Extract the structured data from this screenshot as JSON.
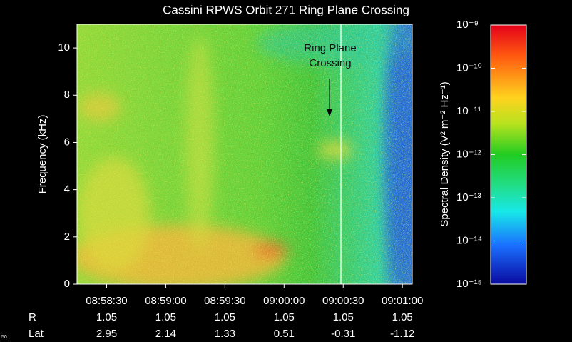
{
  "chart_data": {
    "type": "spectrogram",
    "title": "Cassini RPWS Orbit 271 Ring Plane Crossing",
    "y_label": "Frequency (kHz)",
    "ylim": [
      0,
      11
    ],
    "yticks": [
      0,
      2,
      4,
      6,
      8,
      10
    ],
    "xlim": [
      "08:58:15",
      "09:01:05"
    ],
    "xticks": [
      "08:58:30",
      "08:59:00",
      "08:59:30",
      "09:00:00",
      "09:00:30",
      "09:01:00"
    ],
    "ephemeris": [
      {
        "name": "R",
        "values": [
          1.05,
          1.05,
          1.05,
          1.05,
          1.05,
          1.05
        ]
      },
      {
        "name": "Lat",
        "values": [
          2.95,
          2.14,
          1.33,
          0.51,
          -0.31,
          -1.12
        ]
      }
    ],
    "annotation": [
      "Ring Plane",
      "Crossing"
    ],
    "colorbar": {
      "label": "Spectral Density (V² m⁻² Hz⁻¹)",
      "log": true,
      "lim": [
        1e-15,
        1e-09
      ],
      "ticks": [
        {
          "value": 1e-09,
          "label": "10⁻⁹"
        },
        {
          "value": 1e-10,
          "label": "10⁻¹⁰"
        },
        {
          "value": 1e-11,
          "label": "10⁻¹¹"
        },
        {
          "value": 1e-12,
          "label": "10⁻¹²"
        },
        {
          "value": 1e-13,
          "label": "10⁻¹³"
        },
        {
          "value": 1e-14,
          "label": "10⁻¹⁴"
        },
        {
          "value": 1e-15,
          "label": "10⁻¹⁵"
        }
      ]
    },
    "corner_label": "50"
  }
}
